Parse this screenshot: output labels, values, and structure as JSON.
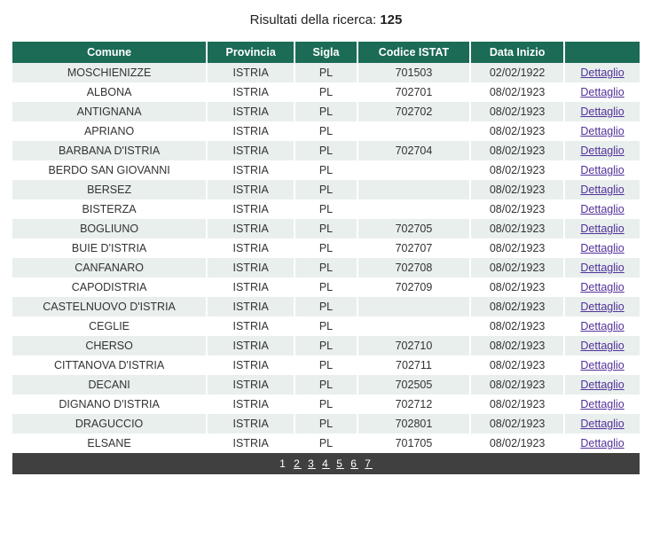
{
  "header": {
    "label": "Risultati della ricerca:",
    "count": "125"
  },
  "columns": {
    "comune": "Comune",
    "provincia": "Provincia",
    "sigla": "Sigla",
    "istat": "Codice ISTAT",
    "data": "Data Inizio",
    "action": ""
  },
  "colwidths": {
    "comune": "31%",
    "provincia": "14%",
    "sigla": "10%",
    "istat": "18%",
    "data": "15%",
    "action": "12%"
  },
  "detail_label": "Dettaglio",
  "rows": [
    {
      "comune": "MOSCHIENIZZE",
      "provincia": "ISTRIA",
      "sigla": "PL",
      "istat": "701503",
      "data": "02/02/1922"
    },
    {
      "comune": "ALBONA",
      "provincia": "ISTRIA",
      "sigla": "PL",
      "istat": "702701",
      "data": "08/02/1923"
    },
    {
      "comune": "ANTIGNANA",
      "provincia": "ISTRIA",
      "sigla": "PL",
      "istat": "702702",
      "data": "08/02/1923"
    },
    {
      "comune": "APRIANO",
      "provincia": "ISTRIA",
      "sigla": "PL",
      "istat": "",
      "data": "08/02/1923"
    },
    {
      "comune": "BARBANA D'ISTRIA",
      "provincia": "ISTRIA",
      "sigla": "PL",
      "istat": "702704",
      "data": "08/02/1923"
    },
    {
      "comune": "BERDO SAN GIOVANNI",
      "provincia": "ISTRIA",
      "sigla": "PL",
      "istat": "",
      "data": "08/02/1923"
    },
    {
      "comune": "BERSEZ",
      "provincia": "ISTRIA",
      "sigla": "PL",
      "istat": "",
      "data": "08/02/1923"
    },
    {
      "comune": "BISTERZA",
      "provincia": "ISTRIA",
      "sigla": "PL",
      "istat": "",
      "data": "08/02/1923"
    },
    {
      "comune": "BOGLIUNO",
      "provincia": "ISTRIA",
      "sigla": "PL",
      "istat": "702705",
      "data": "08/02/1923"
    },
    {
      "comune": "BUIE D'ISTRIA",
      "provincia": "ISTRIA",
      "sigla": "PL",
      "istat": "702707",
      "data": "08/02/1923"
    },
    {
      "comune": "CANFANARO",
      "provincia": "ISTRIA",
      "sigla": "PL",
      "istat": "702708",
      "data": "08/02/1923"
    },
    {
      "comune": "CAPODISTRIA",
      "provincia": "ISTRIA",
      "sigla": "PL",
      "istat": "702709",
      "data": "08/02/1923"
    },
    {
      "comune": "CASTELNUOVO D'ISTRIA",
      "provincia": "ISTRIA",
      "sigla": "PL",
      "istat": "",
      "data": "08/02/1923"
    },
    {
      "comune": "CEGLIE",
      "provincia": "ISTRIA",
      "sigla": "PL",
      "istat": "",
      "data": "08/02/1923"
    },
    {
      "comune": "CHERSO",
      "provincia": "ISTRIA",
      "sigla": "PL",
      "istat": "702710",
      "data": "08/02/1923"
    },
    {
      "comune": "CITTANOVA D'ISTRIA",
      "provincia": "ISTRIA",
      "sigla": "PL",
      "istat": "702711",
      "data": "08/02/1923"
    },
    {
      "comune": "DECANI",
      "provincia": "ISTRIA",
      "sigla": "PL",
      "istat": "702505",
      "data": "08/02/1923"
    },
    {
      "comune": "DIGNANO D'ISTRIA",
      "provincia": "ISTRIA",
      "sigla": "PL",
      "istat": "702712",
      "data": "08/02/1923"
    },
    {
      "comune": "DRAGUCCIO",
      "provincia": "ISTRIA",
      "sigla": "PL",
      "istat": "702801",
      "data": "08/02/1923"
    },
    {
      "comune": "ELSANE",
      "provincia": "ISTRIA",
      "sigla": "PL",
      "istat": "701705",
      "data": "08/02/1923"
    }
  ],
  "pagination": {
    "pages": [
      "1",
      "2",
      "3",
      "4",
      "5",
      "6",
      "7"
    ],
    "current": "1"
  }
}
